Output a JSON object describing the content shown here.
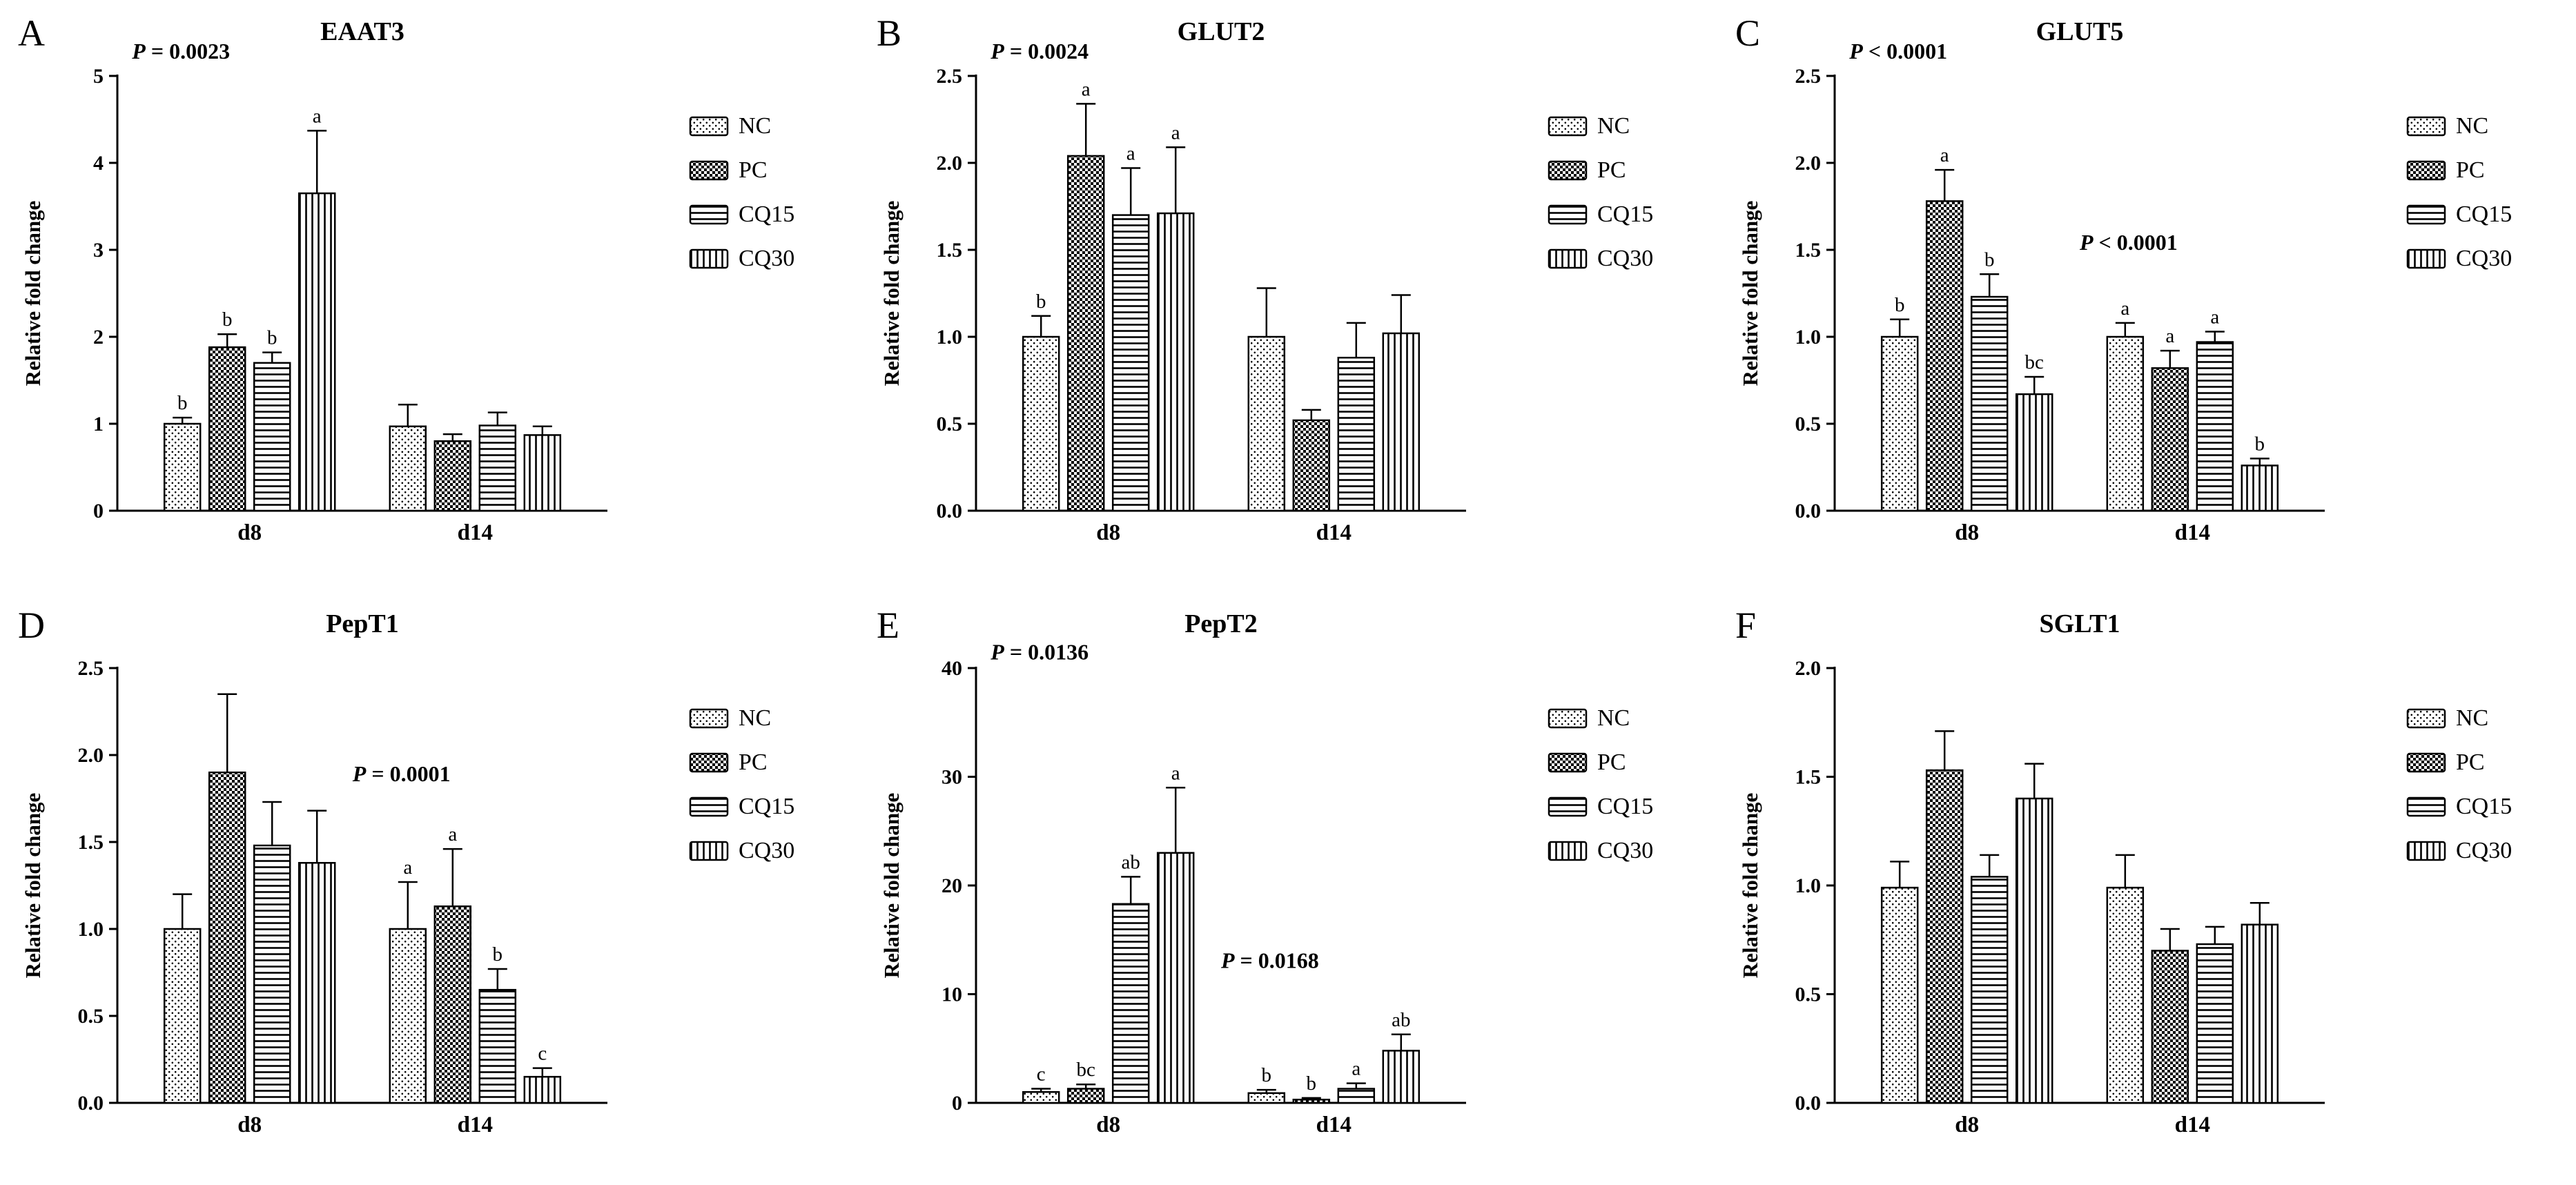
{
  "figure": {
    "background": "#ffffff",
    "axis_color": "#000000",
    "bar_background": "#ffffff",
    "rows": 2,
    "cols": 3
  },
  "legend_items": [
    "NC",
    "PC",
    "CQ15",
    "CQ30"
  ],
  "pattern_map": {
    "NC": "dots",
    "PC": "checker",
    "CQ15": "hlines",
    "CQ30": "vlines"
  },
  "chart_data": [
    {
      "type": "bar",
      "panel_letter": "A",
      "title": "EAAT3",
      "ylabel": "Relative fold change",
      "ylim": [
        0,
        5
      ],
      "yticks": [
        0,
        1,
        2,
        3,
        4,
        5
      ],
      "ytick_labels": [
        "0",
        "1",
        "2",
        "3",
        "4",
        "5"
      ],
      "categories": [
        "d8",
        "d14"
      ],
      "series": [
        {
          "name": "NC",
          "values": [
            1.0,
            0.97
          ],
          "errors": [
            0.07,
            0.25
          ],
          "letters": [
            "b",
            ""
          ]
        },
        {
          "name": "PC",
          "values": [
            1.88,
            0.8
          ],
          "errors": [
            0.15,
            0.08
          ],
          "letters": [
            "b",
            ""
          ]
        },
        {
          "name": "CQ15",
          "values": [
            1.7,
            0.98
          ],
          "errors": [
            0.12,
            0.15
          ],
          "letters": [
            "b",
            ""
          ]
        },
        {
          "name": "CQ30",
          "values": [
            3.65,
            0.87
          ],
          "errors": [
            0.72,
            0.1
          ],
          "letters": [
            "a",
            ""
          ]
        }
      ],
      "annotations": [
        {
          "text": "P = 0.0023",
          "fx": 0.03,
          "fy": 1.04
        }
      ],
      "legend": [
        "NC",
        "PC",
        "CQ15",
        "CQ30"
      ]
    },
    {
      "type": "bar",
      "panel_letter": "B",
      "title": "GLUT2",
      "ylabel": "Relative fold change",
      "ylim": [
        0,
        2.5
      ],
      "yticks": [
        0,
        0.5,
        1.0,
        1.5,
        2.0,
        2.5
      ],
      "ytick_labels": [
        "0.0",
        "0.5",
        "1.0",
        "1.5",
        "2.0",
        "2.5"
      ],
      "categories": [
        "d8",
        "d14"
      ],
      "series": [
        {
          "name": "NC",
          "values": [
            1.0,
            1.0
          ],
          "errors": [
            0.12,
            0.28
          ],
          "letters": [
            "b",
            ""
          ]
        },
        {
          "name": "PC",
          "values": [
            2.04,
            0.52
          ],
          "errors": [
            0.3,
            0.06
          ],
          "letters": [
            "a",
            ""
          ]
        },
        {
          "name": "CQ15",
          "values": [
            1.7,
            0.88
          ],
          "errors": [
            0.27,
            0.2
          ],
          "letters": [
            "a",
            ""
          ]
        },
        {
          "name": "CQ30",
          "values": [
            1.71,
            1.02
          ],
          "errors": [
            0.38,
            0.22
          ],
          "letters": [
            "a",
            ""
          ]
        }
      ],
      "annotations": [
        {
          "text": "P = 0.0024",
          "fx": 0.03,
          "fy": 1.04
        }
      ],
      "legend": [
        "NC",
        "PC",
        "CQ15",
        "CQ30"
      ]
    },
    {
      "type": "bar",
      "panel_letter": "C",
      "title": "GLUT5",
      "ylabel": "Relative fold change",
      "ylim": [
        0,
        2.5
      ],
      "yticks": [
        0,
        0.5,
        1.0,
        1.5,
        2.0,
        2.5
      ],
      "ytick_labels": [
        "0.0",
        "0.5",
        "1.0",
        "1.5",
        "2.0",
        "2.5"
      ],
      "categories": [
        "d8",
        "d14"
      ],
      "series": [
        {
          "name": "NC",
          "values": [
            1.0,
            1.0
          ],
          "errors": [
            0.1,
            0.08
          ],
          "letters": [
            "b",
            "a"
          ]
        },
        {
          "name": "PC",
          "values": [
            1.78,
            0.82
          ],
          "errors": [
            0.18,
            0.1
          ],
          "letters": [
            "a",
            "a"
          ]
        },
        {
          "name": "CQ15",
          "values": [
            1.23,
            0.97
          ],
          "errors": [
            0.13,
            0.06
          ],
          "letters": [
            "b",
            "a"
          ]
        },
        {
          "name": "CQ30",
          "values": [
            0.67,
            0.26
          ],
          "errors": [
            0.1,
            0.04
          ],
          "letters": [
            "bc",
            "b"
          ]
        }
      ],
      "annotations": [
        {
          "text": "P < 0.0001",
          "fx": 0.03,
          "fy": 1.04
        },
        {
          "text": "P < 0.0001",
          "fx": 0.5,
          "fy": 0.6
        }
      ],
      "legend": [
        "NC",
        "PC",
        "CQ15",
        "CQ30"
      ]
    },
    {
      "type": "bar",
      "panel_letter": "D",
      "title": "PepT1",
      "ylabel": "Relative fold change",
      "ylim": [
        0,
        2.5
      ],
      "yticks": [
        0,
        0.5,
        1.0,
        1.5,
        2.0,
        2.5
      ],
      "ytick_labels": [
        "0.0",
        "0.5",
        "1.0",
        "1.5",
        "2.0",
        "2.5"
      ],
      "categories": [
        "d8",
        "d14"
      ],
      "series": [
        {
          "name": "NC",
          "values": [
            1.0,
            1.0
          ],
          "errors": [
            0.2,
            0.27
          ],
          "letters": [
            "",
            "a"
          ]
        },
        {
          "name": "PC",
          "values": [
            1.9,
            1.13
          ],
          "errors": [
            0.45,
            0.33
          ],
          "letters": [
            "",
            "a"
          ]
        },
        {
          "name": "CQ15",
          "values": [
            1.48,
            0.65
          ],
          "errors": [
            0.25,
            0.12
          ],
          "letters": [
            "",
            "b"
          ]
        },
        {
          "name": "CQ30",
          "values": [
            1.38,
            0.15
          ],
          "errors": [
            0.3,
            0.05
          ],
          "letters": [
            "",
            "c"
          ]
        }
      ],
      "annotations": [
        {
          "text": "P = 0.0001",
          "fx": 0.48,
          "fy": 0.74
        }
      ],
      "legend": [
        "NC",
        "PC",
        "CQ15",
        "CQ30"
      ]
    },
    {
      "type": "bar",
      "panel_letter": "E",
      "title": "PepT2",
      "ylabel": "Relative fold change",
      "ylim": [
        0,
        40
      ],
      "yticks": [
        0,
        10,
        20,
        30,
        40
      ],
      "ytick_labels": [
        "0",
        "10",
        "20",
        "30",
        "40"
      ],
      "categories": [
        "d8",
        "d14"
      ],
      "series": [
        {
          "name": "NC",
          "values": [
            1.0,
            0.9
          ],
          "errors": [
            0.3,
            0.3
          ],
          "letters": [
            "c",
            "b"
          ]
        },
        {
          "name": "PC",
          "values": [
            1.3,
            0.3
          ],
          "errors": [
            0.4,
            0.15
          ],
          "letters": [
            "bc",
            "b"
          ]
        },
        {
          "name": "CQ15",
          "values": [
            18.3,
            1.3
          ],
          "errors": [
            2.5,
            0.5
          ],
          "letters": [
            "ab",
            "a"
          ]
        },
        {
          "name": "CQ30",
          "values": [
            23.0,
            4.8
          ],
          "errors": [
            6.0,
            1.5
          ],
          "letters": [
            "a",
            "ab"
          ]
        }
      ],
      "annotations": [
        {
          "text": "P = 0.0136",
          "fx": 0.03,
          "fy": 1.02
        },
        {
          "text": "P = 0.0168",
          "fx": 0.5,
          "fy": 0.31
        }
      ],
      "legend": [
        "NC",
        "PC",
        "CQ15",
        "CQ30"
      ]
    },
    {
      "type": "bar",
      "panel_letter": "F",
      "title": "SGLT1",
      "ylabel": "Relative fold change",
      "ylim": [
        0,
        2.0
      ],
      "yticks": [
        0,
        0.5,
        1.0,
        1.5,
        2.0
      ],
      "ytick_labels": [
        "0.0",
        "0.5",
        "1.0",
        "1.5",
        "2.0"
      ],
      "categories": [
        "d8",
        "d14"
      ],
      "series": [
        {
          "name": "NC",
          "values": [
            0.99,
            0.99
          ],
          "errors": [
            0.12,
            0.15
          ],
          "letters": [
            "",
            ""
          ]
        },
        {
          "name": "PC",
          "values": [
            1.53,
            0.7
          ],
          "errors": [
            0.18,
            0.1
          ],
          "letters": [
            "",
            ""
          ]
        },
        {
          "name": "CQ15",
          "values": [
            1.04,
            0.73
          ],
          "errors": [
            0.1,
            0.08
          ],
          "letters": [
            "",
            ""
          ]
        },
        {
          "name": "CQ30",
          "values": [
            1.4,
            0.82
          ],
          "errors": [
            0.16,
            0.1
          ],
          "letters": [
            "",
            ""
          ]
        }
      ],
      "annotations": [],
      "legend": [
        "NC",
        "PC",
        "CQ15",
        "CQ30"
      ]
    }
  ]
}
